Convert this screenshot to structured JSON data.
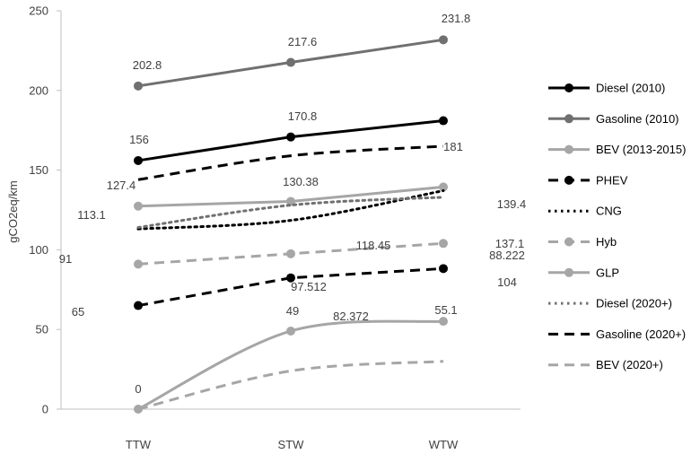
{
  "chart_data": {
    "type": "line",
    "categories": [
      "TTW",
      "STW",
      "WTW"
    ],
    "ylabel": "gCO2eq/km",
    "ylim": [
      0,
      250
    ],
    "yticks": [
      0,
      50,
      100,
      150,
      200,
      250
    ],
    "grid": false,
    "legend_position": "right",
    "series": [
      {
        "name": "Diesel (2010)",
        "values": [
          156,
          170.8,
          181
        ],
        "color": "#000000",
        "dash": "solid",
        "marker": true,
        "curve": false
      },
      {
        "name": "Gasoline (2010)",
        "values": [
          202.8,
          217.6,
          231.8
        ],
        "color": "#707070",
        "dash": "solid",
        "marker": true,
        "curve": false
      },
      {
        "name": "BEV (2013-2015)",
        "values": [
          127.4,
          130.38,
          139.4
        ],
        "color": "#a6a6a6",
        "dash": "solid",
        "marker": true,
        "curve": false
      },
      {
        "name": "PHEV",
        "values": [
          65,
          82.372,
          88.222
        ],
        "color": "#000000",
        "dash": "dash",
        "marker": true,
        "curve": false
      },
      {
        "name": "CNG",
        "values": [
          113.1,
          118.45,
          137.1
        ],
        "color": "#000000",
        "dash": "dot",
        "marker": false,
        "curve": true
      },
      {
        "name": "Hyb",
        "values": [
          91,
          97.512,
          104
        ],
        "color": "#a6a6a6",
        "dash": "dash",
        "marker": true,
        "curve": false
      },
      {
        "name": "GLP",
        "values": [
          0,
          49,
          55.1
        ],
        "color": "#a6a6a6",
        "dash": "solid",
        "marker": true,
        "curve": true
      },
      {
        "name": "Diesel (2020+)",
        "values": [
          114,
          128,
          133
        ],
        "color": "#707070",
        "dash": "dot",
        "marker": false,
        "curve": true
      },
      {
        "name": "Gasoline (2020+)",
        "values": [
          144,
          159,
          165
        ],
        "color": "#000000",
        "dash": "dash",
        "marker": false,
        "curve": true
      },
      {
        "name": "BEV (2020+)",
        "values": [
          0,
          24,
          30
        ],
        "color": "#a6a6a6",
        "dash": "dash",
        "marker": false,
        "curve": true
      }
    ],
    "data_labels": [
      {
        "text": "202.8"
      },
      {
        "text": "217.6"
      },
      {
        "text": "231.8"
      },
      {
        "text": "156"
      },
      {
        "text": "170.8"
      },
      {
        "text": "181"
      },
      {
        "text": "127.4"
      },
      {
        "text": "130.38"
      },
      {
        "text": "139.4"
      },
      {
        "text": "113.1"
      },
      {
        "text": "118.45"
      },
      {
        "text": "137.1"
      },
      {
        "text": "91"
      },
      {
        "text": "97.512"
      },
      {
        "text": "104"
      },
      {
        "text": "65"
      },
      {
        "text": "82.372"
      },
      {
        "text": "88.222"
      },
      {
        "text": "0"
      },
      {
        "text": "49"
      },
      {
        "text": "55.1"
      }
    ]
  }
}
